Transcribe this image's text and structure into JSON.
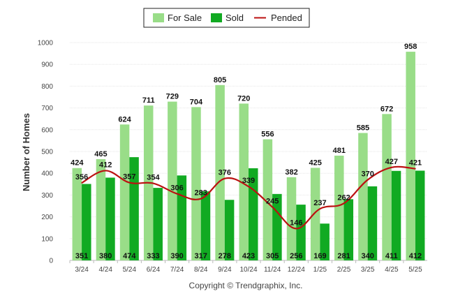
{
  "chart_data": {
    "type": "bar",
    "categories": [
      "3/24",
      "4/24",
      "5/24",
      "6/24",
      "7/24",
      "8/24",
      "9/24",
      "10/24",
      "11/24",
      "12/24",
      "1/25",
      "2/25",
      "3/25",
      "4/25",
      "5/25"
    ],
    "series": [
      {
        "name": "For Sale",
        "type": "bar",
        "color": "#99dd88",
        "values": [
          424,
          465,
          624,
          711,
          729,
          704,
          805,
          720,
          556,
          382,
          425,
          481,
          585,
          672,
          958
        ]
      },
      {
        "name": "Sold",
        "type": "bar",
        "color": "#11aa22",
        "values": [
          351,
          380,
          474,
          333,
          390,
          317,
          278,
          423,
          305,
          256,
          169,
          281,
          340,
          411,
          412
        ]
      },
      {
        "name": "Pended",
        "type": "line",
        "color": "#bb1111",
        "values": [
          356,
          412,
          357,
          354,
          306,
          283,
          376,
          339,
          245,
          146,
          237,
          262,
          370,
          427,
          421
        ]
      }
    ],
    "ylabel": "Number of Homes",
    "ylim": [
      0,
      1000
    ],
    "yticks": [
      0,
      100,
      200,
      300,
      400,
      500,
      600,
      700,
      800,
      900,
      1000
    ],
    "grid": true,
    "legend_position": "top-center",
    "credit": "Copyright © Trendgraphix, Inc."
  }
}
